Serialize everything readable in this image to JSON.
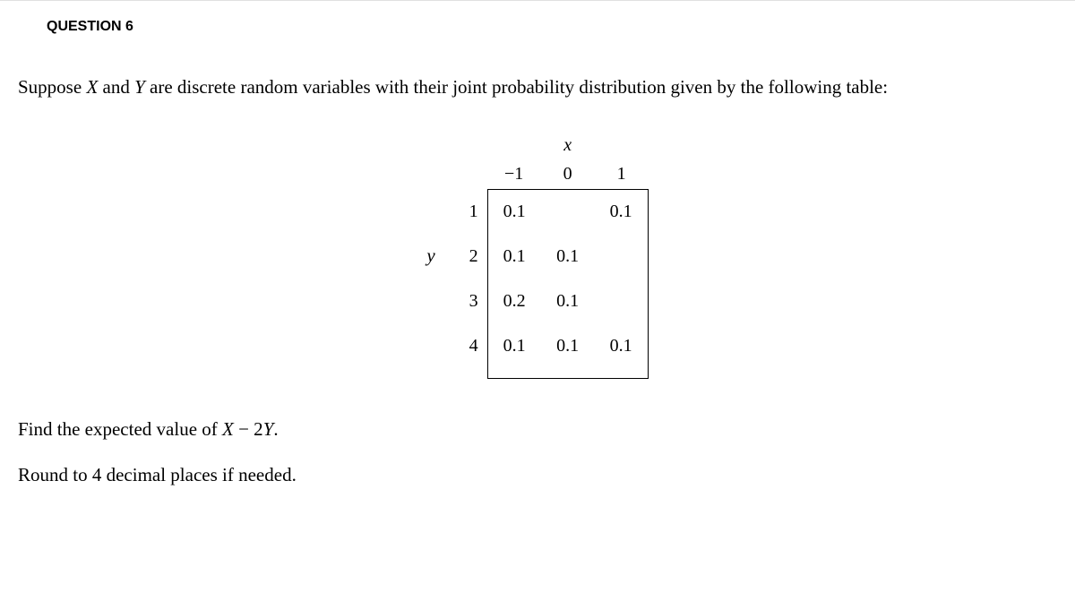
{
  "question_label": "QUESTION 6",
  "prompt_pre": "Suppose ",
  "var_X": "X",
  "prompt_and": " and ",
  "var_Y": "Y",
  "prompt_post": " are discrete random variables with their joint probability distribution given by the following table:",
  "table": {
    "x_symbol": "x",
    "y_symbol": "y",
    "x_headers": [
      "−1",
      "0",
      "1"
    ],
    "y_headers": [
      "1",
      "2",
      "3",
      "4"
    ],
    "rows": [
      [
        "0.1",
        "",
        "0.1"
      ],
      [
        "0.1",
        "0.1",
        ""
      ],
      [
        "0.2",
        "0.1",
        ""
      ],
      [
        "0.1",
        "0.1",
        "0.1"
      ]
    ]
  },
  "task_pre": "Find the expected value of ",
  "task_expr_X": "X",
  "task_expr_mid": " − 2",
  "task_expr_Y": "Y",
  "task_post": ".",
  "round_note": "Round to 4 decimal places if needed."
}
